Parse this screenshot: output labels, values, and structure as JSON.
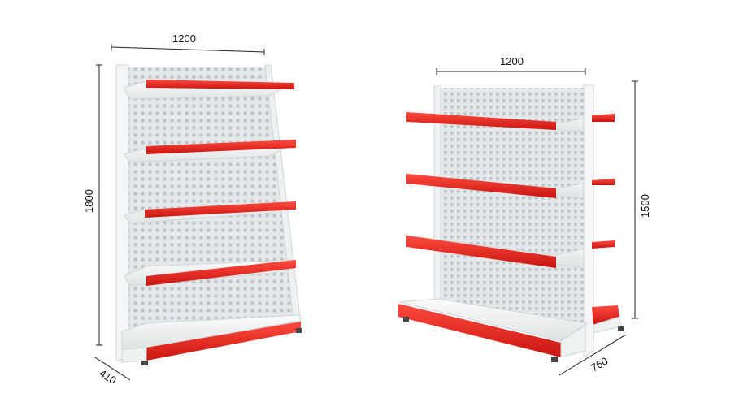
{
  "left_shelf": {
    "width_label": "1200",
    "height_label": "1800",
    "depth_label": "410"
  },
  "right_shelf": {
    "width_label": "1200",
    "height_label": "1500",
    "depth_label": "760"
  },
  "colors": {
    "shelf_edge": "#e8231d",
    "frame": "#f2f4f5",
    "panel": "#e3e9ea",
    "perforation": "#b9c4c7",
    "dimension_line": "#222222"
  }
}
